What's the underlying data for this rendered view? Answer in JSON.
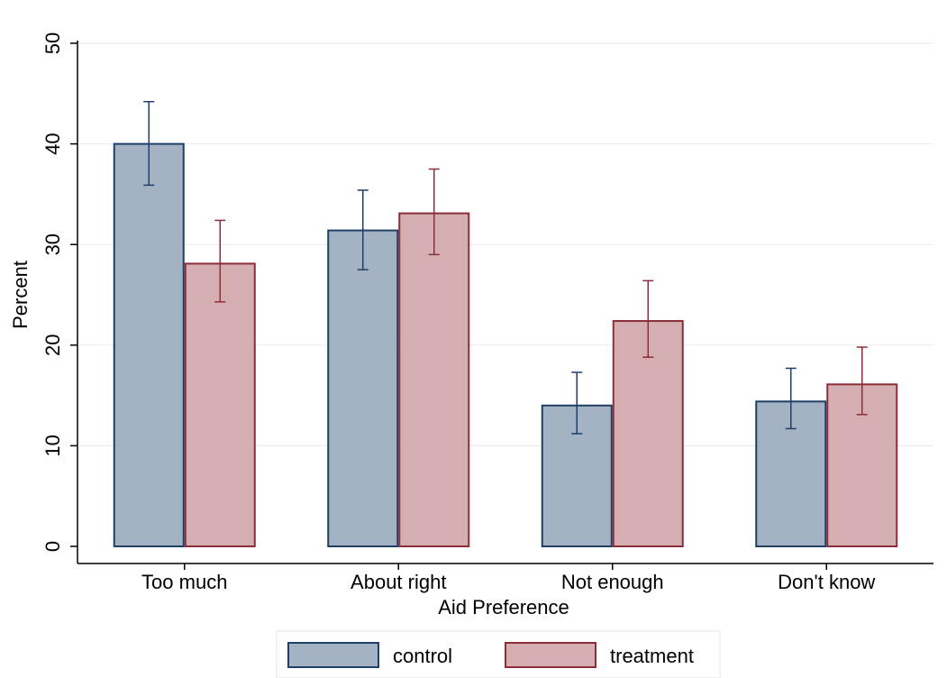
{
  "chart_data": {
    "type": "bar",
    "title": "",
    "xlabel": "Aid Preference",
    "ylabel": "Percent",
    "ylim": [
      0,
      50
    ],
    "yticks": [
      0,
      10,
      20,
      30,
      40,
      50
    ],
    "grid": true,
    "legend_position": "bottom",
    "categories": [
      "Too much",
      "About right",
      "Not enough",
      "Don't know"
    ],
    "series": [
      {
        "name": "control",
        "fill": "#a3b3c4",
        "stroke": "#1f3f66",
        "values": [
          40.0,
          31.4,
          14.0,
          14.4
        ],
        "ci_low": [
          35.9,
          27.5,
          11.2,
          11.7
        ],
        "ci_high": [
          44.2,
          35.4,
          17.3,
          17.7
        ]
      },
      {
        "name": "treatment",
        "fill": "#d4aeb0",
        "stroke": "#8c2d3a",
        "values": [
          28.1,
          33.1,
          22.4,
          16.1
        ],
        "ci_low": [
          24.3,
          29.0,
          18.8,
          13.1
        ],
        "ci_high": [
          32.4,
          37.5,
          26.4,
          19.8
        ]
      }
    ]
  }
}
